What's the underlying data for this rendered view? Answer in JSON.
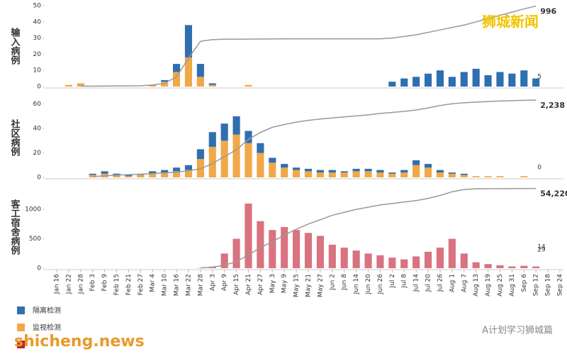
{
  "chart_data": {
    "type": "bar",
    "x": [
      "Jan 16",
      "Jan 22",
      "Jan 28",
      "Feb 3",
      "Feb 9",
      "Feb 15",
      "Feb 21",
      "Feb 27",
      "Mar 4",
      "Mar 10",
      "Mar 16",
      "Mar 22",
      "Mar 28",
      "Apr 3",
      "Apr 9",
      "Apr 15",
      "Apr 21",
      "Apr 27",
      "May 3",
      "May 9",
      "May 15",
      "May 21",
      "May 27",
      "Jun 2",
      "Jun 8",
      "Jun 14",
      "Jun 20",
      "Jun 26",
      "Jul 2",
      "Jul 8",
      "Jul 14",
      "Jul 20",
      "Jul 26",
      "Aug 1",
      "Aug 7",
      "Aug 13",
      "Aug 19",
      "Aug 25",
      "Aug 31",
      "Sep 6",
      "Sep 12",
      "Sep 18",
      "Sep 24"
    ],
    "panels": [
      {
        "ylabel": "输入病例",
        "ylim": [
          0,
          50
        ],
        "yticks": [
          0,
          10,
          20,
          30,
          40,
          50
        ],
        "y2lim": [
          0,
          1000
        ],
        "series": [
          {
            "name": "隔离检测",
            "color": "#2f6fb0",
            "values": [
              0,
              0,
              0,
              0,
              0,
              0,
              0,
              0,
              0,
              1,
              5,
              20,
              8,
              1,
              0,
              0,
              0,
              0,
              0,
              0,
              0,
              0,
              0,
              0,
              0,
              0,
              0,
              0,
              3,
              5,
              6,
              8,
              10,
              6,
              9,
              11,
              7,
              9,
              8,
              10,
              5,
              null,
              null
            ]
          },
          {
            "name": "监视检测",
            "color": "#f0a848",
            "values": [
              0,
              1,
              2,
              0,
              0,
              0,
              0,
              0,
              1,
              3,
              9,
              18,
              6,
              1,
              0,
              0,
              1,
              0,
              0,
              0,
              0,
              0,
              0,
              0,
              0,
              0,
              0,
              0,
              0,
              0,
              0,
              0,
              0,
              0,
              0,
              0,
              0,
              0,
              0,
              0,
              0,
              null,
              null
            ]
          }
        ],
        "cumulative": {
          "color": "#999999",
          "values": [
            null,
            null,
            5,
            6,
            7,
            8,
            9,
            10,
            20,
            40,
            120,
            350,
            560,
            580,
            585,
            586,
            587,
            588,
            589,
            590,
            590,
            590,
            590,
            590,
            590,
            590,
            590,
            590,
            600,
            620,
            640,
            670,
            700,
            730,
            760,
            800,
            840,
            880,
            920,
            960,
            996,
            null,
            null
          ]
        },
        "annotations": [
          "996",
          "5"
        ]
      },
      {
        "ylabel": "社区病例",
        "ylim": [
          0,
          65
        ],
        "yticks": [
          0,
          20,
          40,
          60
        ],
        "y2lim": [
          0,
          2300
        ],
        "series": [
          {
            "color": "#2f6fb0",
            "values": [
              0,
              0,
              0,
              1,
              2,
              1,
              1,
              1,
              2,
              2,
              3,
              4,
              8,
              12,
              14,
              15,
              10,
              8,
              4,
              3,
              2,
              2,
              2,
              2,
              1,
              2,
              2,
              2,
              1,
              2,
              4,
              3,
              2,
              1,
              1,
              0,
              0,
              0,
              0,
              0,
              0,
              null,
              null
            ]
          },
          {
            "color": "#f0a848",
            "values": [
              0,
              0,
              0,
              2,
              3,
              2,
              1,
              2,
              3,
              4,
              5,
              6,
              15,
              25,
              30,
              35,
              28,
              20,
              12,
              8,
              6,
              5,
              4,
              4,
              4,
              5,
              5,
              4,
              3,
              4,
              10,
              8,
              4,
              3,
              2,
              1,
              1,
              1,
              0,
              1,
              0,
              null,
              null
            ]
          }
        ],
        "cumulative": {
          "color": "#999999",
          "values": [
            null,
            null,
            null,
            20,
            45,
            65,
            80,
            90,
            110,
            130,
            150,
            190,
            250,
            400,
            600,
            800,
            1100,
            1300,
            1450,
            1530,
            1600,
            1650,
            1690,
            1720,
            1750,
            1780,
            1810,
            1850,
            1880,
            1910,
            1950,
            2010,
            2080,
            2130,
            2160,
            2180,
            2195,
            2210,
            2220,
            2230,
            2238,
            null,
            null
          ]
        },
        "annotations": [
          "2,238",
          "0"
        ]
      },
      {
        "ylabel": "客工宿舍病例",
        "ylim": [
          0,
          1400
        ],
        "yticks": [
          0,
          500,
          1000
        ],
        "y2lim": [
          0,
          56000
        ],
        "series": [
          {
            "color": "#d9737f",
            "values": [
              0,
              0,
              0,
              0,
              0,
              0,
              0,
              0,
              0,
              0,
              0,
              0,
              5,
              20,
              250,
              500,
              1100,
              800,
              650,
              700,
              650,
              600,
              550,
              400,
              350,
              300,
              250,
              220,
              180,
              150,
              200,
              280,
              350,
              500,
              250,
              100,
              70,
              50,
              30,
              40,
              29,
              null,
              null
            ]
          }
        ],
        "cumulative": {
          "color": "#999999",
          "values": [
            null,
            null,
            null,
            null,
            null,
            null,
            null,
            null,
            null,
            null,
            null,
            null,
            200,
            800,
            2000,
            4500,
            9000,
            14000,
            18000,
            22500,
            26500,
            30000,
            33000,
            36000,
            38000,
            40000,
            41500,
            43000,
            44000,
            45000,
            46000,
            47500,
            49500,
            52000,
            53500,
            54000,
            54100,
            54150,
            54180,
            54200,
            54220,
            null,
            null
          ]
        },
        "annotations": [
          "54,220",
          "29",
          "14"
        ]
      }
    ],
    "watermarks": [
      "狮城新闻",
      "shicheng.news",
      "A计划学习狮城篇"
    ]
  }
}
